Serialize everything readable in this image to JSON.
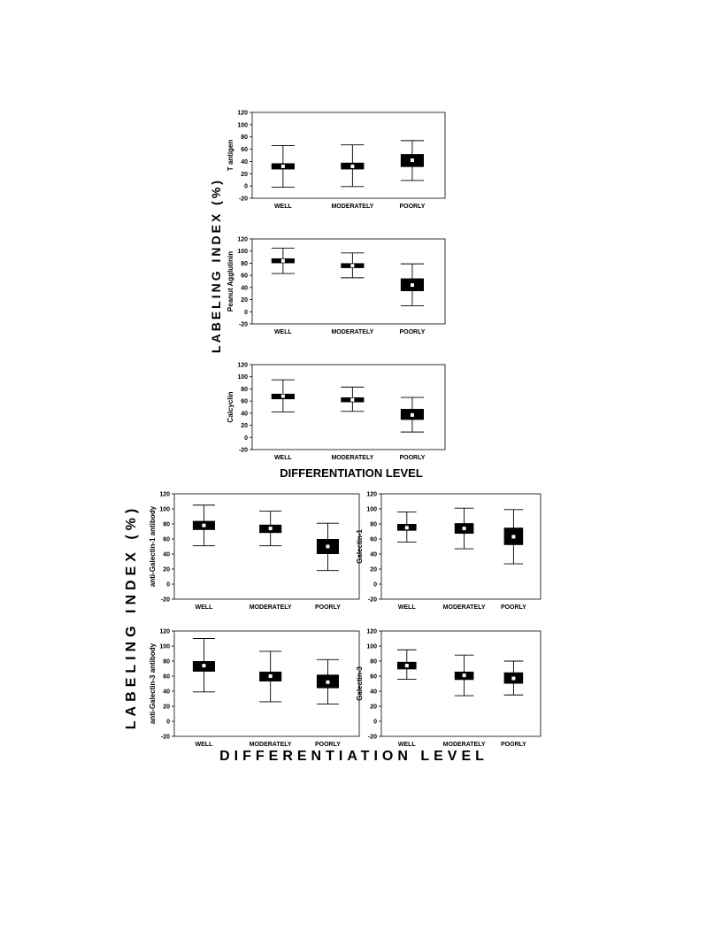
{
  "figure_labels": {
    "top_y": "LABELING INDEX (%)",
    "top_x": "DIFFERENTIATION LEVEL",
    "bottom_y": "LABELING INDEX (%)",
    "bottom_x": "DIFFERENTIATION LEVEL"
  },
  "chart_data": [
    {
      "type": "box",
      "ylabel": "T antigen",
      "categories": [
        "WELL",
        "MODERATELY",
        "POORLY"
      ],
      "whisker_low": [
        -2,
        -1,
        9
      ],
      "q1": [
        27,
        27,
        31
      ],
      "median": [
        32,
        32,
        42
      ],
      "q3": [
        37,
        38,
        52
      ],
      "whisker_high": [
        66,
        67,
        74
      ],
      "ylim": [
        -20,
        120
      ],
      "yticks": [
        -20,
        0,
        20,
        40,
        60,
        80,
        100,
        120
      ]
    },
    {
      "type": "box",
      "ylabel": "Peanut Agglutinin",
      "categories": [
        "WELL",
        "MODERATELY",
        "POORLY"
      ],
      "whisker_low": [
        63,
        56,
        10
      ],
      "q1": [
        80,
        72,
        34
      ],
      "median": [
        84,
        76,
        44
      ],
      "q3": [
        88,
        80,
        55
      ],
      "whisker_high": [
        105,
        97,
        79
      ],
      "ylim": [
        -20,
        120
      ],
      "yticks": [
        -20,
        0,
        20,
        40,
        60,
        80,
        100,
        120
      ]
    },
    {
      "type": "box",
      "ylabel": "Calcyclin",
      "categories": [
        "WELL",
        "MODERATELY",
        "POORLY"
      ],
      "whisker_low": [
        42,
        43,
        9
      ],
      "q1": [
        63,
        58,
        29
      ],
      "median": [
        68,
        62,
        37
      ],
      "q3": [
        72,
        66,
        47
      ],
      "whisker_high": [
        95,
        83,
        66
      ],
      "ylim": [
        -20,
        120
      ],
      "yticks": [
        -20,
        0,
        20,
        40,
        60,
        80,
        100,
        120
      ]
    },
    {
      "type": "box",
      "ylabel": "anti-Galectin-1 antibody",
      "categories": [
        "WELL",
        "MODERATELY",
        "POORLY"
      ],
      "whisker_low": [
        51,
        51,
        18
      ],
      "q1": [
        72,
        68,
        40
      ],
      "median": [
        78,
        74,
        50
      ],
      "q3": [
        84,
        79,
        60
      ],
      "whisker_high": [
        105,
        97,
        81
      ],
      "ylim": [
        -20,
        120
      ],
      "yticks": [
        -20,
        0,
        20,
        40,
        60,
        80,
        100,
        120
      ]
    },
    {
      "type": "box",
      "ylabel": "Galectin-1",
      "categories": [
        "WELL",
        "MODERATELY",
        "POORLY"
      ],
      "whisker_low": [
        56,
        47,
        27
      ],
      "q1": [
        71,
        67,
        52
      ],
      "median": [
        75,
        74,
        63
      ],
      "q3": [
        80,
        81,
        75
      ],
      "whisker_high": [
        96,
        101,
        99
      ],
      "ylim": [
        -20,
        120
      ],
      "yticks": [
        -20,
        0,
        20,
        40,
        60,
        80,
        100,
        120
      ]
    },
    {
      "type": "box",
      "ylabel": "anti-Galectin-3 antibody",
      "categories": [
        "WELL",
        "MODERATELY",
        "POORLY"
      ],
      "whisker_low": [
        39,
        26,
        23
      ],
      "q1": [
        66,
        53,
        44
      ],
      "median": [
        74,
        60,
        52
      ],
      "q3": [
        80,
        66,
        62
      ],
      "whisker_high": [
        110,
        93,
        82
      ],
      "ylim": [
        -20,
        120
      ],
      "yticks": [
        -20,
        0,
        20,
        40,
        60,
        80,
        100,
        120
      ]
    },
    {
      "type": "box",
      "ylabel": "Galectin-3",
      "categories": [
        "WELL",
        "MODERATELY",
        "POORLY"
      ],
      "whisker_low": [
        56,
        34,
        35
      ],
      "q1": [
        69,
        55,
        50
      ],
      "median": [
        74,
        61,
        57
      ],
      "q3": [
        79,
        66,
        65
      ],
      "whisker_high": [
        95,
        88,
        80
      ],
      "ylim": [
        -20,
        120
      ],
      "yticks": [
        -20,
        0,
        20,
        40,
        60,
        80,
        100,
        120
      ]
    }
  ]
}
